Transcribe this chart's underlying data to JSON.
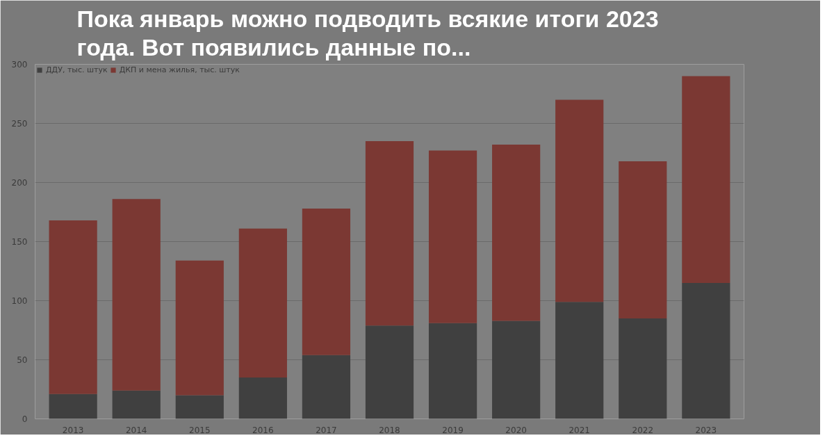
{
  "chart_data": {
    "type": "bar",
    "stacked": true,
    "title": "Пока январь можно подводить всякие итоги 2023 года. Вот появились данные по...",
    "categories": [
      "2013",
      "2014",
      "2015",
      "2016",
      "2017",
      "2018",
      "2019",
      "2020",
      "2021",
      "2022",
      "2023"
    ],
    "series": [
      {
        "name": "ДДУ, тыс. штук",
        "color": "#404040",
        "values": [
          21,
          24,
          20,
          35,
          54,
          79,
          81,
          83,
          99,
          85,
          115
        ]
      },
      {
        "name": "ДКП и мена жилья, тыс. штук",
        "color": "#7b3833",
        "values": [
          147,
          162,
          114,
          126,
          124,
          156,
          146,
          149,
          171,
          133,
          175
        ]
      }
    ],
    "ylim": [
      0,
      300
    ],
    "yticks": [
      0,
      50,
      100,
      150,
      200,
      250,
      300
    ],
    "grid": "y",
    "legend": "top left"
  }
}
